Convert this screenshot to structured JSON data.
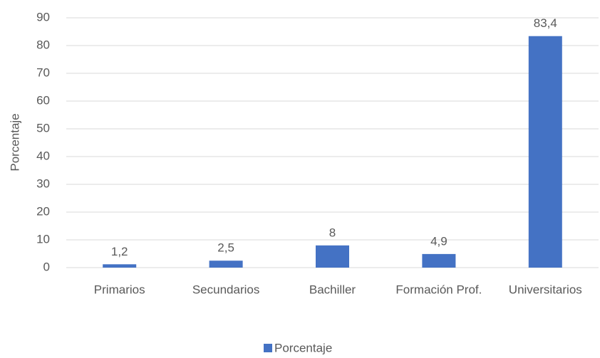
{
  "chart_data": {
    "type": "bar",
    "ylabel": "Porcentaje",
    "categories": [
      "Primarios",
      "Secundarios",
      "Bachiller",
      "Formación Prof.",
      "Universitarios"
    ],
    "series": [
      {
        "name": "Porcentaje",
        "color": "#4472c4",
        "values": [
          1.2,
          2.5,
          8,
          4.9,
          83.4
        ],
        "value_labels": [
          "1,2",
          "2,5",
          "8",
          "4,9",
          "83,4"
        ]
      }
    ],
    "ylim": [
      0,
      90
    ],
    "yticks": [
      0,
      10,
      20,
      30,
      40,
      50,
      60,
      70,
      80,
      90
    ],
    "grid": true,
    "legend": "bottom"
  }
}
